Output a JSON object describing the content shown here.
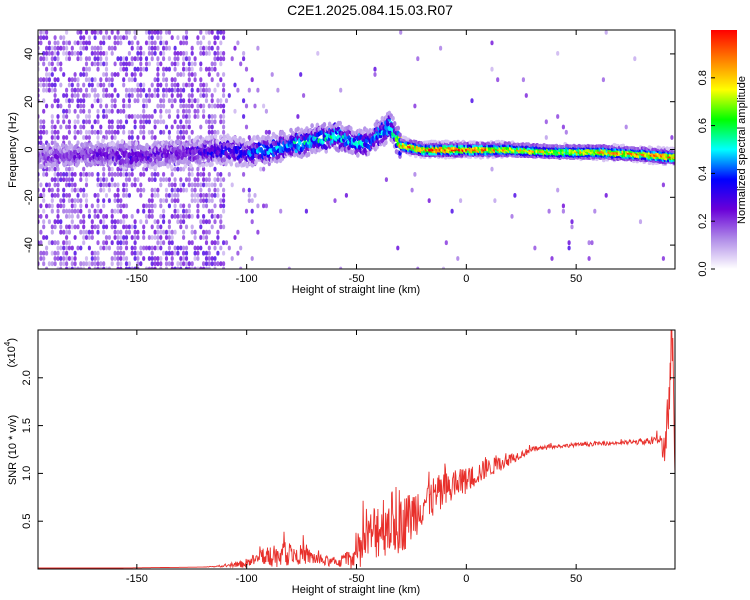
{
  "figure": {
    "title": "C2E1.2025.084.15.03.R07"
  },
  "chart_data": [
    {
      "type": "heatmap",
      "xlabel": "Height of straight line (km)",
      "ylabel": "Frequency (Hz)",
      "xlim": [
        -195,
        95
      ],
      "ylim": [
        -50,
        50
      ],
      "xticks": [
        -150,
        -100,
        -50,
        0,
        50
      ],
      "yticks": [
        -40,
        -20,
        0,
        20,
        40
      ],
      "colorbar": {
        "label": "Normalized spectral amplitude",
        "range": [
          0.0,
          1.0
        ],
        "ticks": [
          0.0,
          0.2,
          0.4,
          0.6,
          0.8
        ],
        "colormap": [
          "#ffffff",
          "#b08ce8",
          "#6a00d8",
          "#0000ff",
          "#00ffff",
          "#00ff00",
          "#ffff00",
          "#ff8000",
          "#ff0000"
        ]
      },
      "ridge": {
        "x": [
          -195,
          -180,
          -165,
          -150,
          -140,
          -130,
          -120,
          -110,
          -100,
          -90,
          -80,
          -70,
          -60,
          -50,
          -45,
          -40,
          -35,
          -30,
          -20,
          -10,
          0,
          10,
          20,
          40,
          60,
          80,
          93
        ],
        "frequency": [
          -3,
          -2,
          -2,
          -3,
          -2,
          -1,
          -1,
          0,
          -1,
          0,
          2,
          4,
          6,
          3,
          3,
          6,
          10,
          2,
          0,
          0,
          0,
          0,
          0,
          -1,
          -1,
          -2,
          -3
        ],
        "amplitude": [
          0.2,
          0.22,
          0.25,
          0.28,
          0.25,
          0.25,
          0.3,
          0.35,
          0.4,
          0.45,
          0.5,
          0.5,
          0.55,
          0.5,
          0.45,
          0.5,
          0.5,
          0.8,
          0.9,
          0.95,
          0.9,
          0.85,
          0.8,
          0.75,
          0.8,
          0.85,
          0.9
        ]
      }
    },
    {
      "type": "line",
      "xlabel": "Height of straight line (km)",
      "ylabel": "SNR (10 * v/v)",
      "y_multiplier": "(x10",
      "y_multiplier_exp": "4",
      "xlim": [
        -195,
        95
      ],
      "ylim": [
        0,
        2.5
      ],
      "xticks": [
        -150,
        -100,
        -50,
        0,
        50
      ],
      "yticks": [
        0.5,
        1.0,
        1.5,
        2.0
      ],
      "color": "#e8302b",
      "series": [
        {
          "x": [
            -195,
            -180,
            -160,
            -140,
            -120,
            -110,
            -105,
            -100,
            -95,
            -90,
            -85,
            -80,
            -75,
            -70,
            -65,
            -60,
            -55,
            -50,
            -45,
            -40,
            -35,
            -30,
            -25,
            -20,
            -15,
            -10,
            -5,
            0,
            5,
            10,
            15,
            20,
            25,
            30,
            40,
            50,
            60,
            70,
            80,
            88,
            90,
            92,
            93,
            94,
            95
          ],
          "y": [
            0.01,
            0.01,
            0.01,
            0.015,
            0.02,
            0.03,
            0.04,
            0.06,
            0.1,
            0.12,
            0.14,
            0.16,
            0.15,
            0.12,
            0.08,
            0.07,
            0.09,
            0.15,
            0.3,
            0.45,
            0.5,
            0.45,
            0.55,
            0.7,
            0.75,
            0.8,
            0.88,
            0.92,
            1.0,
            1.05,
            1.1,
            1.15,
            1.2,
            1.25,
            1.28,
            1.3,
            1.31,
            1.32,
            1.33,
            1.35,
            1.3,
            1.5,
            2.2,
            2.4,
            1.1
          ],
          "noise": [
            0,
            0,
            0,
            0,
            0,
            0.01,
            0.02,
            0.05,
            0.08,
            0.1,
            0.12,
            0.12,
            0.1,
            0.08,
            0.05,
            0.05,
            0.08,
            0.15,
            0.25,
            0.35,
            0.35,
            0.3,
            0.28,
            0.26,
            0.22,
            0.2,
            0.18,
            0.14,
            0.12,
            0.1,
            0.08,
            0.06,
            0.04,
            0.03,
            0.02,
            0.02,
            0.02,
            0.02,
            0.03,
            0.05,
            0.2,
            0.4,
            0.4,
            0.3,
            0.3
          ]
        }
      ]
    }
  ]
}
